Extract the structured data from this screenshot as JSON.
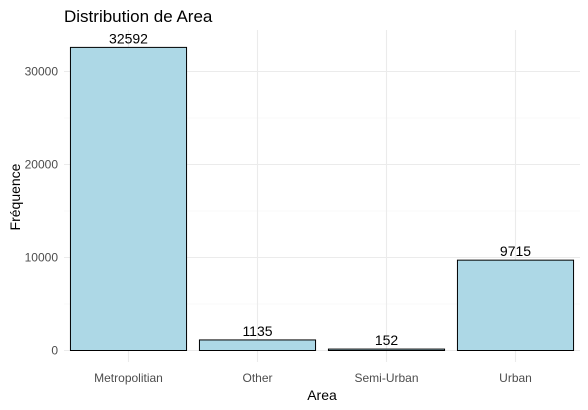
{
  "chart_data": {
    "type": "bar",
    "title": "Distribution de Area",
    "xlabel": "Area",
    "ylabel": "Fréquence",
    "categories": [
      "Metropolitian",
      "Other",
      "Semi-Urban",
      "Urban"
    ],
    "values": [
      32592,
      1135,
      152,
      9715
    ],
    "data_labels": [
      "32592",
      "1135",
      "152",
      "9715"
    ],
    "yticks": [
      0,
      10000,
      20000,
      30000
    ],
    "ytick_labels": [
      "0",
      "10000",
      "20000",
      "30000"
    ],
    "ylim": [
      0,
      34000
    ],
    "grid": true,
    "legend": "none",
    "bar_color": "#add8e6",
    "bar_edge_color": "#000000"
  }
}
